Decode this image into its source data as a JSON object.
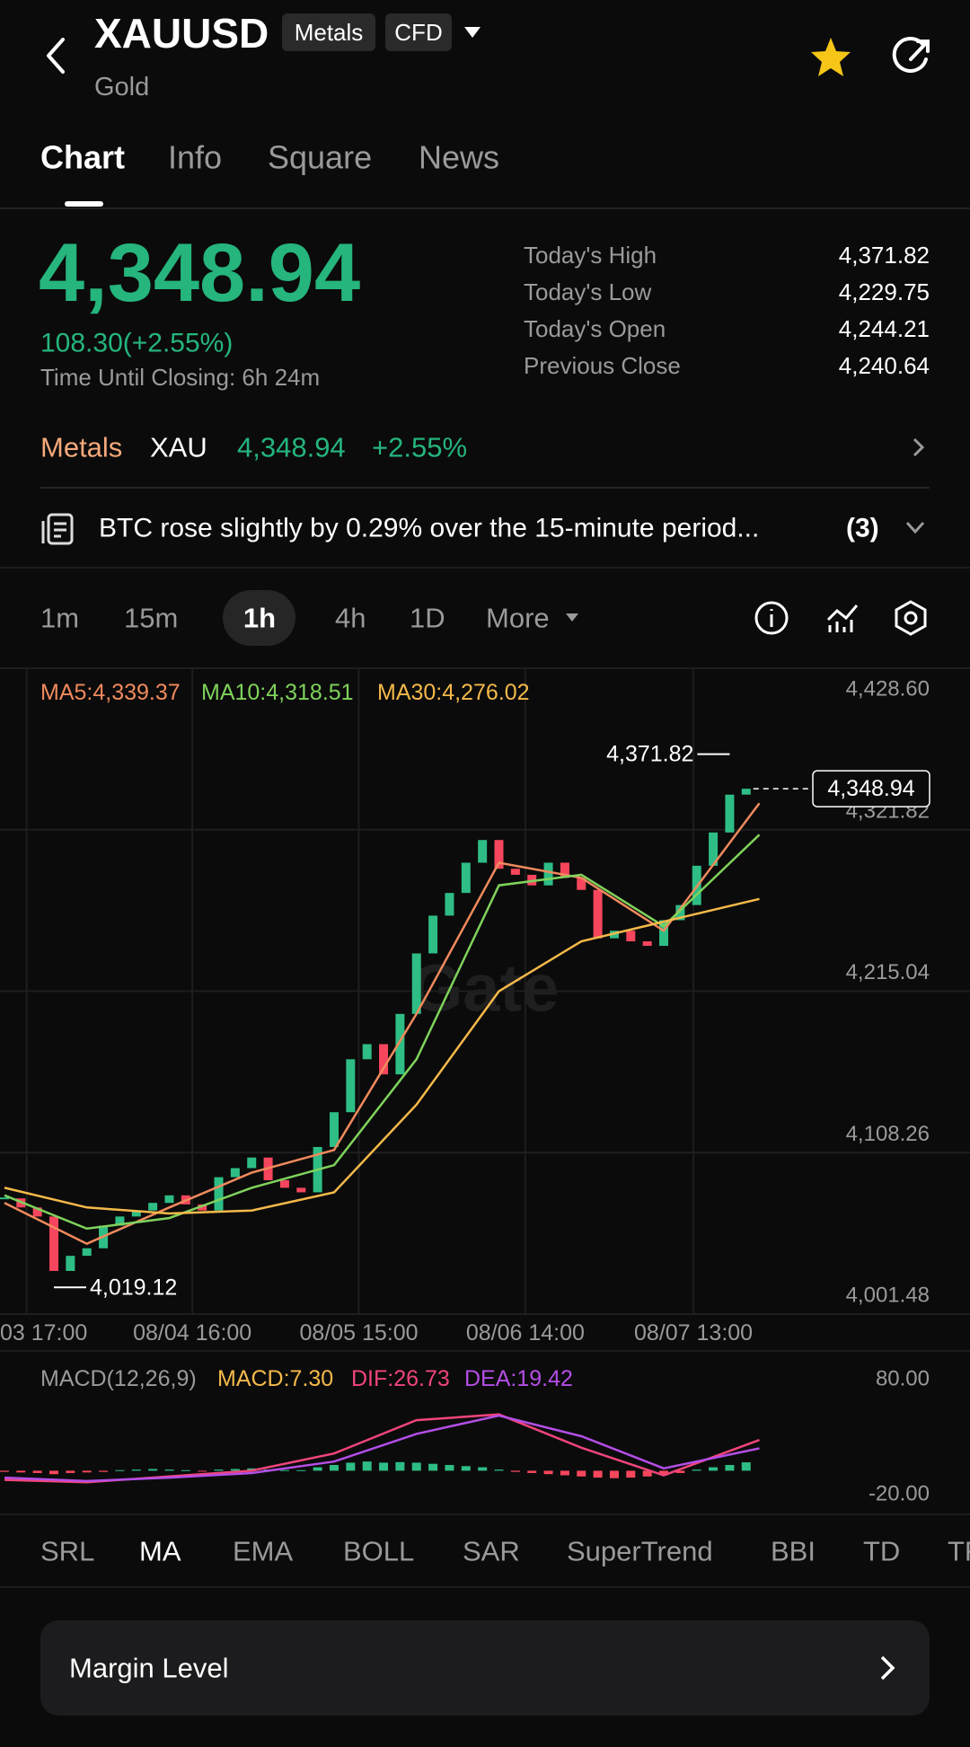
{
  "header": {
    "symbol": "XAUUSD",
    "badges": [
      "Metals",
      "CFD"
    ],
    "name": "Gold"
  },
  "tabs": [
    "Chart",
    "Info",
    "Square",
    "News"
  ],
  "quote": {
    "price": "4,348.94",
    "change": "108.30(+2.55%)",
    "closing": "Time Until Closing: 6h 24m",
    "stats": [
      {
        "label": "Today's High",
        "value": "4,371.82"
      },
      {
        "label": "Today's Low",
        "value": "4,229.75"
      },
      {
        "label": "Today's Open",
        "value": "4,244.21"
      },
      {
        "label": "Previous Close",
        "value": "4,240.64"
      }
    ]
  },
  "market_row": {
    "category": "Metals",
    "symbol": "XAU",
    "price": "4,348.94",
    "change": "+2.55%"
  },
  "news": {
    "text": "BTC rose slightly by 0.29% over the 15-minute period...",
    "count": "(3)"
  },
  "intervals": [
    "1m",
    "15m",
    "1h",
    "4h",
    "1D",
    "More"
  ],
  "watermark": "Gate",
  "chart_data": [
    {
      "type": "candlestick",
      "close": [
        4078,
        4072,
        4066,
        4030,
        4040,
        4045,
        4060,
        4066,
        4070,
        4075,
        4080,
        4074,
        4070,
        4092,
        4098,
        4105,
        4090,
        4085,
        4082,
        4112,
        4135,
        4170,
        4180,
        4160,
        4200,
        4240,
        4265,
        4280,
        4300,
        4315,
        4296,
        4292,
        4285,
        4300,
        4290,
        4282,
        4250,
        4255,
        4248,
        4245,
        4262,
        4272,
        4298,
        4320,
        4345,
        4348.94
      ],
      "up_color": "#2ebd85",
      "down_color": "#f6465d",
      "xlim": [
        -0.27,
        58.58
      ],
      "xticks": [
        {
          "value": 1.35,
          "label": "03 17:00"
        },
        {
          "value": 11.4,
          "label": "08/04 16:00"
        },
        {
          "value": 21.5,
          "label": "08/05 15:00"
        },
        {
          "value": 31.6,
          "label": "08/06 14:00"
        },
        {
          "value": 41.8,
          "label": "08/07 13:00"
        }
      ],
      "ylim": [
        4001.48,
        4428.6
      ],
      "yticks": [
        {
          "value": 4001.48,
          "label": "4,001.48"
        },
        {
          "value": 4108.26,
          "label": "4,108.26"
        },
        {
          "value": 4215.04,
          "label": "4,215.04"
        },
        {
          "value": 4321.82,
          "label": "4,321.82"
        },
        {
          "value": 4428.6,
          "label": "4,428.60"
        }
      ],
      "grid": true,
      "ma": [
        {
          "name": "MA5:4,339.37",
          "color": "#f08a5d",
          "x": [
            0,
            5,
            10,
            15,
            20,
            25,
            30,
            35,
            40,
            45.8
          ],
          "values": [
            4075,
            4048,
            4072,
            4095,
            4110,
            4200,
            4300,
            4290,
            4255,
            4339.37
          ]
        },
        {
          "name": "MA10:4,318.51",
          "color": "#7fd35c",
          "x": [
            0,
            5,
            10,
            15,
            20,
            25,
            30,
            35,
            40,
            45.8
          ],
          "values": [
            4080,
            4058,
            4065,
            4085,
            4100,
            4170,
            4285,
            4292,
            4258,
            4318.51
          ]
        },
        {
          "name": "MA30:4,276.02",
          "color": "#f5b94a",
          "x": [
            0,
            5,
            10,
            15,
            20,
            25,
            30,
            35,
            40,
            45.8
          ],
          "values": [
            4085,
            4072,
            4068,
            4070,
            4082,
            4140,
            4215,
            4248,
            4261,
            4276.02
          ]
        }
      ],
      "annotations": [
        {
          "label": "4,371.82",
          "value": 4371.82,
          "index": 44
        },
        {
          "label": "4,019.12",
          "value": 4019.12,
          "index": 3
        }
      ],
      "last_price": {
        "value": 4348.94,
        "label": "4,348.94"
      }
    },
    {
      "type": "macd",
      "title": "MACD(12,26,9)",
      "xlim": [
        -0.27,
        58.58
      ],
      "ylim": [
        -20,
        80
      ],
      "yticks": [
        {
          "value": 80,
          "label": "80.00"
        },
        {
          "value": -20,
          "label": "-20.00"
        }
      ],
      "histogram": {
        "name": "MACD:7.30",
        "color": "#f5b94a",
        "up_color": "#2ebd85",
        "down_color": "#f6465d",
        "values": [
          -1,
          -1.5,
          -2,
          -3,
          -2,
          -1.5,
          -1,
          0.5,
          1,
          1.5,
          1,
          0.5,
          -0.5,
          1,
          1.5,
          2,
          1,
          0.5,
          0.5,
          3,
          5,
          7,
          8,
          7,
          7.5,
          7,
          6,
          5,
          4,
          3,
          1,
          -1,
          -2,
          -3,
          -4,
          -5,
          -6,
          -6.5,
          -6,
          -5,
          -4,
          -2,
          1,
          3,
          5,
          7.3
        ]
      },
      "series": [
        {
          "name": "DIF:26.73",
          "color": "#f0457a",
          "x": [
            0,
            5,
            10,
            15,
            20,
            25,
            30,
            35,
            40,
            45.8
          ],
          "values": [
            -8,
            -10,
            -5,
            0,
            15,
            44,
            49,
            20,
            -4,
            26.73
          ]
        },
        {
          "name": "DEA:19.42",
          "color": "#b44ee6",
          "x": [
            0,
            5,
            10,
            15,
            20,
            25,
            30,
            35,
            40,
            45.8
          ],
          "values": [
            -6,
            -9,
            -6,
            -2,
            8,
            32,
            48,
            30,
            2,
            19.42
          ]
        }
      ]
    }
  ],
  "indicators": [
    "SRL",
    "MA",
    "EMA",
    "BOLL",
    "SAR",
    "SuperTrend",
    "BBI",
    "TD",
    "TRIX"
  ],
  "footer": {
    "margin_level": "Margin Level"
  }
}
